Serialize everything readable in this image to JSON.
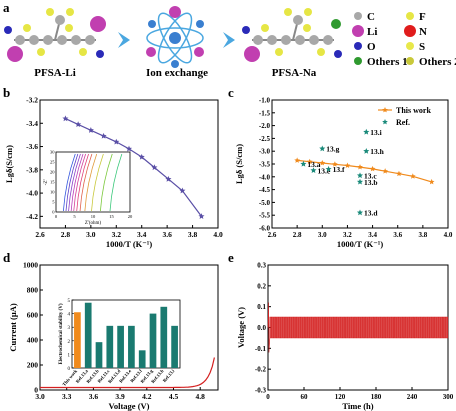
{
  "panel_a": {
    "letter": "a",
    "left_label": "PFSA-Li",
    "center_label": "Ion exchange",
    "right_label": "PFSA-Na",
    "legend": [
      {
        "symbol": "C",
        "color": "#a8a8a8"
      },
      {
        "symbol": "F",
        "color": "#e6e645"
      },
      {
        "symbol": "Li",
        "color": "#c13fb0"
      },
      {
        "symbol": "N",
        "color": "#e01c1c"
      },
      {
        "symbol": "O",
        "color": "#2a2ab8"
      },
      {
        "symbol": "S",
        "color": "#e8e84a"
      },
      {
        "symbol": "Others 1",
        "color": "#2f9a2f"
      },
      {
        "symbol": "Others 2",
        "color": "#c9c93a"
      }
    ]
  },
  "chart_data": [
    {
      "panel": "b",
      "type": "line",
      "xlabel": "1000/T (K⁻¹)",
      "ylabel": "Lgδ(S/cm)",
      "xlim": [
        2.6,
        4.0
      ],
      "ylim": [
        -4.3,
        -3.2
      ],
      "xticks": [
        "2.6",
        "2.8",
        "3.0",
        "3.2",
        "3.4",
        "3.6",
        "3.8",
        "4.0"
      ],
      "yticks": [
        "-4.2",
        "-4.0",
        "-3.8",
        "-3.6",
        "-3.4",
        "-3.2"
      ],
      "color": "#5a4fa6",
      "x": [
        2.8,
        2.9,
        3.0,
        3.1,
        3.2,
        3.3,
        3.4,
        3.5,
        3.61,
        3.72,
        3.87
      ],
      "y": [
        -3.36,
        -3.41,
        -3.46,
        -3.51,
        -3.56,
        -3.62,
        -3.69,
        -3.78,
        -3.88,
        -3.98,
        -4.2
      ],
      "inset": {
        "xlabel": "Z'(ohm)",
        "ylabel": "-Z''",
        "xticks": [
          "0",
          "5",
          "10",
          "15",
          "20"
        ],
        "yticks": [
          "0",
          "5",
          "10",
          "15",
          "20",
          "25",
          "30"
        ],
        "xlim": [
          0,
          20
        ],
        "ylim": [
          0,
          30
        ],
        "lines": [
          {
            "x0": 2.0,
            "color": "#3355dd"
          },
          {
            "x0": 2.7,
            "color": "#5a3fc8"
          },
          {
            "x0": 3.4,
            "color": "#8a3fc8"
          },
          {
            "x0": 4.1,
            "color": "#b83fb8"
          },
          {
            "x0": 4.8,
            "color": "#d43f9a"
          },
          {
            "x0": 5.6,
            "color": "#e0407a"
          },
          {
            "x0": 6.5,
            "color": "#e0604a"
          },
          {
            "x0": 7.8,
            "color": "#e09a3a"
          },
          {
            "x0": 9.6,
            "color": "#c8c83a"
          },
          {
            "x0": 12.0,
            "color": "#7ac83a"
          },
          {
            "x0": 14.6,
            "color": "#3ac87a"
          }
        ]
      }
    },
    {
      "panel": "c",
      "type": "scatter",
      "xlabel": "1000/T (K⁻¹)",
      "ylabel": "Lgδ (S/cm)",
      "xlim": [
        2.6,
        4.0
      ],
      "ylim": [
        -6.0,
        -1.0
      ],
      "xticks": [
        "2.6",
        "2.8",
        "3.0",
        "3.2",
        "3.4",
        "3.6",
        "3.8",
        "4.0"
      ],
      "yticks": [
        "-6.0",
        "-5.5",
        "-5.0",
        "-4.5",
        "-4.0",
        "-3.5",
        "-3.0",
        "-2.5",
        "-2.0",
        "-1.5",
        "-1.0"
      ],
      "legend": [
        "This work",
        "Ref."
      ],
      "this_work": {
        "color": "#f08a1c",
        "x": [
          2.8,
          2.9,
          3.0,
          3.1,
          3.2,
          3.3,
          3.4,
          3.5,
          3.61,
          3.72,
          3.87
        ],
        "y": [
          -3.36,
          -3.41,
          -3.46,
          -3.51,
          -3.56,
          -3.62,
          -3.69,
          -3.78,
          -3.88,
          -3.98,
          -4.2
        ]
      },
      "refs": {
        "color": "#1a8a7a",
        "points": [
          {
            "label": "13.i",
            "x": 3.35,
            "y": -2.25
          },
          {
            "label": "13.h",
            "x": 3.35,
            "y": -3.0
          },
          {
            "label": "13.g",
            "x": 3.0,
            "y": -2.9
          },
          {
            "label": "13.a",
            "x": 2.85,
            "y": -3.5
          },
          {
            "label": "13.e",
            "x": 2.93,
            "y": -3.75
          },
          {
            "label": "13.f",
            "x": 3.05,
            "y": -3.7
          },
          {
            "label": "13.c",
            "x": 3.3,
            "y": -3.95
          },
          {
            "label": "13.b",
            "x": 3.3,
            "y": -4.2
          },
          {
            "label": "13.d",
            "x": 3.3,
            "y": -5.4
          }
        ]
      }
    },
    {
      "panel": "d",
      "type": "line",
      "xlabel": "Voltage (V)",
      "ylabel": "Current (μA)",
      "xlim": [
        3.0,
        5.0
      ],
      "ylim": [
        0,
        1000
      ],
      "xticks": [
        "3.0",
        "3.3",
        "3.6",
        "3.9",
        "4.2",
        "4.5",
        "4.8"
      ],
      "yticks": [
        "0",
        "200",
        "400",
        "600",
        "800",
        "1000"
      ],
      "color": "#d42020",
      "x": [
        3.0,
        3.5,
        4.0,
        4.5,
        4.7,
        4.8,
        4.85,
        4.9,
        4.93,
        4.95
      ],
      "y": [
        20,
        21,
        22,
        25,
        35,
        60,
        90,
        140,
        200,
        260
      ],
      "inset": {
        "type": "bar",
        "ylabel": "Electrochemical stability (V)",
        "yticks": [
          "0",
          "1",
          "2",
          "3",
          "4",
          "5"
        ],
        "ylim": [
          0,
          5
        ],
        "categories": [
          "This work",
          "Ref.13.a",
          "Ref.13.b",
          "Ref.13.c",
          "Ref.13.d",
          "Ref.13.e",
          "Ref.13.f",
          "Ref.13.g",
          "Ref.13.h",
          "Ref.13.i"
        ],
        "values": [
          4.1,
          4.8,
          1.9,
          3.1,
          3.1,
          3.1,
          1.3,
          4.0,
          4.5,
          3.1
        ],
        "colors": [
          "#f08a1c",
          "#1a7a70",
          "#1a7a70",
          "#1a7a70",
          "#1a7a70",
          "#1a7a70",
          "#1a7a70",
          "#1a7a70",
          "#1a7a70",
          "#1a7a70"
        ]
      }
    },
    {
      "panel": "e",
      "type": "line",
      "xlabel": "Time (h)",
      "ylabel": "Voltage (V)",
      "xlim": [
        0,
        300
      ],
      "ylim": [
        -0.3,
        0.3
      ],
      "xticks": [
        "0",
        "60",
        "120",
        "180",
        "240",
        "300"
      ],
      "yticks": [
        "-0.3",
        "-0.2",
        "-0.1",
        "0.0",
        "0.1",
        "0.2",
        "0.3"
      ],
      "color": "#d42020",
      "amplitude": 0.05,
      "initial_spike": 0.12
    }
  ]
}
